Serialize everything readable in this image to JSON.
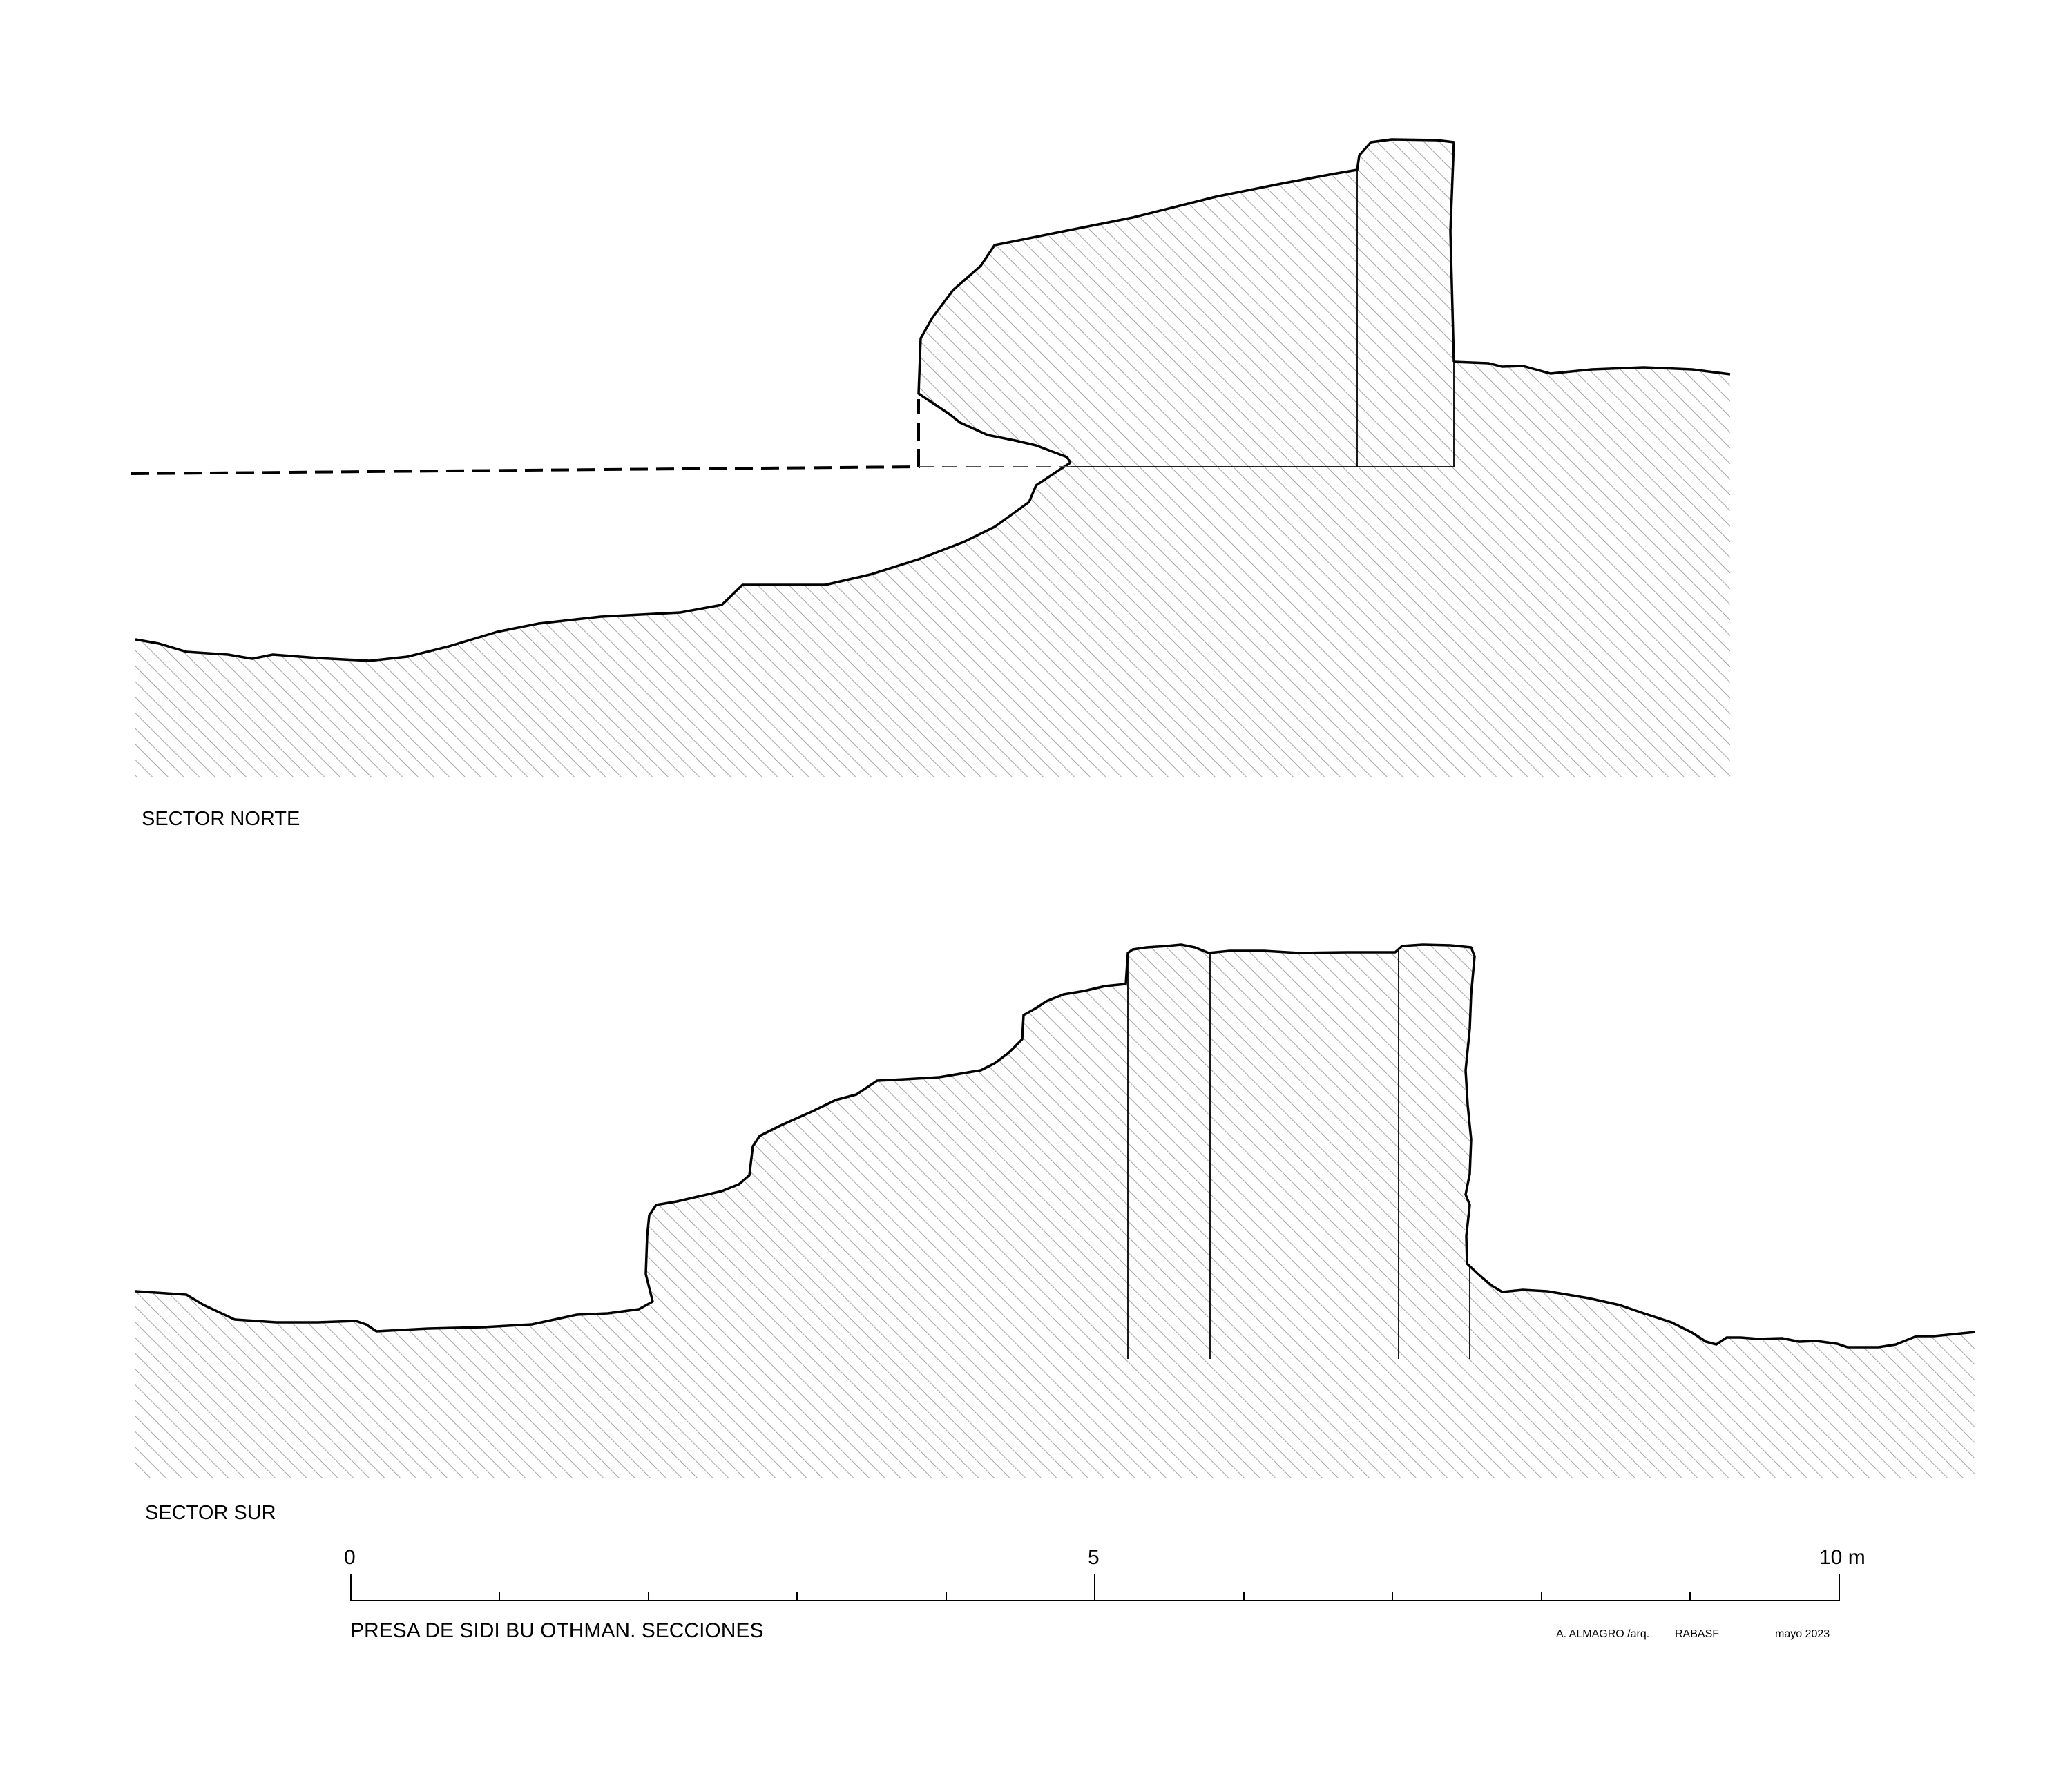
{
  "sections": {
    "north_label": "SECTOR NORTE",
    "south_label": "SECTOR SUR"
  },
  "scale": {
    "label_start": "0",
    "label_mid": "5",
    "label_end": "10 m"
  },
  "footer": {
    "title": "PRESA DE SIDI BU OTHMAN. SECCIONES",
    "author": "A. ALMAGRO /arq.",
    "institution": "RABASF",
    "date": "mayo 2023"
  },
  "colors": {
    "ink": "#000000",
    "hatch": "#8a8a8a",
    "paper": "#ffffff"
  }
}
